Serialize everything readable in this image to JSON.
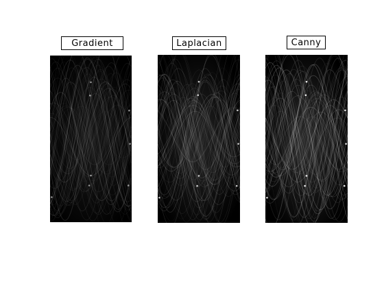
{
  "figure": {
    "panels": [
      {
        "title": "Gradient",
        "brightness": 0.55
      },
      {
        "title": "Laplacian",
        "brightness": 0.8
      },
      {
        "title": "Canny",
        "brightness": 0.95
      }
    ]
  }
}
